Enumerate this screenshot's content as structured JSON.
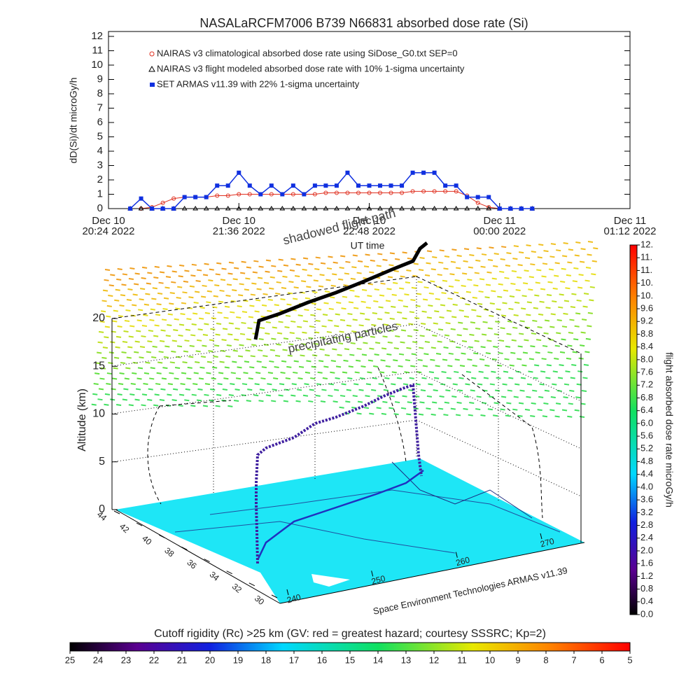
{
  "chart_data": [
    {
      "type": "line",
      "title": "NASALaRCFM7006  B739 N66831 absorbed dose rate (Si)",
      "ylabel": "dD(Si)/dt microGy/h",
      "xlabel": "UT time",
      "x": [
        "2022-12-10T20:36",
        "2022-12-10T20:42",
        "2022-12-10T20:48",
        "2022-12-10T20:54",
        "2022-12-10T21:00",
        "2022-12-10T21:06",
        "2022-12-10T21:12",
        "2022-12-10T21:18",
        "2022-12-10T21:24",
        "2022-12-10T21:30",
        "2022-12-10T21:36",
        "2022-12-10T21:42",
        "2022-12-10T21:48",
        "2022-12-10T21:54",
        "2022-12-10T22:00",
        "2022-12-10T22:06",
        "2022-12-10T22:12",
        "2022-12-10T22:18",
        "2022-12-10T22:24",
        "2022-12-10T22:30",
        "2022-12-10T22:36",
        "2022-12-10T22:42",
        "2022-12-10T22:48",
        "2022-12-10T22:54",
        "2022-12-10T23:00",
        "2022-12-10T23:06",
        "2022-12-10T23:12",
        "2022-12-10T23:18",
        "2022-12-10T23:24",
        "2022-12-10T23:30",
        "2022-12-10T23:36",
        "2022-12-10T23:42",
        "2022-12-10T23:48",
        "2022-12-10T23:54",
        "2022-12-11T00:00",
        "2022-12-11T00:06",
        "2022-12-11T00:12",
        "2022-12-11T00:18"
      ],
      "series": [
        {
          "name": "NAIRAS v3 climatological absorbed dose rate using SiDose_G0.txt SEP=0",
          "color": "#e03020",
          "marker": "circle",
          "values": [
            0,
            0,
            0.1,
            0.4,
            0.7,
            0.8,
            0.8,
            0.8,
            0.9,
            0.9,
            1.0,
            1.0,
            1.0,
            1.0,
            1.0,
            1.0,
            1.0,
            1.0,
            1.1,
            1.1,
            1.1,
            1.1,
            1.1,
            1.1,
            1.1,
            1.1,
            1.2,
            1.2,
            1.2,
            1.2,
            1.2,
            0.9,
            0.4,
            0.1,
            0,
            0,
            0,
            0
          ]
        },
        {
          "name": "NAIRAS v3 flight modeled absorbed dose rate with 10% 1-sigma uncertainty",
          "color": "#000000",
          "marker": "triangle",
          "values": [
            0,
            0,
            0,
            0,
            0,
            0,
            0,
            0,
            0,
            0,
            0,
            0,
            0,
            0,
            0,
            0,
            0,
            0,
            0,
            0,
            0,
            0,
            0,
            0,
            0,
            0,
            0,
            0,
            0,
            0,
            0,
            0,
            0,
            0,
            0,
            0,
            0,
            0
          ]
        },
        {
          "name": "SET ARMAS v11.39 with 22% 1-sigma uncertainty",
          "color": "#1030e0",
          "marker": "square",
          "values": [
            0,
            0.7,
            0,
            0,
            0,
            0.8,
            0.8,
            0.8,
            1.6,
            1.6,
            2.5,
            1.6,
            1.0,
            1.6,
            1.0,
            1.6,
            1.0,
            1.6,
            1.6,
            1.6,
            2.5,
            1.6,
            1.6,
            1.6,
            1.6,
            1.6,
            2.5,
            2.5,
            2.5,
            1.6,
            1.6,
            0.8,
            0.8,
            0.8,
            0,
            0,
            0,
            0
          ]
        }
      ],
      "xlim": [
        "2022-12-10T20:24",
        "2022-12-11T01:12"
      ],
      "xticks": [
        {
          "value": "2022-12-10T20:24",
          "label": "Dec 10\n20:24 2022"
        },
        {
          "value": "2022-12-10T21:36",
          "label": "Dec 10\n21:36 2022"
        },
        {
          "value": "2022-12-10T22:48",
          "label": "Dec 10\n22:48 2022"
        },
        {
          "value": "2022-12-11T00:00",
          "label": "Dec 11\n00:00 2022"
        },
        {
          "value": "2022-12-11T01:12",
          "label": "Dec 11\n01:12 2022"
        }
      ],
      "ylim": [
        0,
        12
      ],
      "yticks": [
        0,
        1,
        2,
        3,
        4,
        5,
        6,
        7,
        8,
        9,
        10,
        11,
        12
      ]
    },
    {
      "type": "3d",
      "zlabel": "Altitude (km)",
      "zticks": [
        0,
        5,
        10,
        15,
        20
      ],
      "yticks": [
        44,
        42,
        40,
        38,
        36,
        34,
        32,
        30
      ],
      "xticks": [
        240,
        250,
        260,
        270
      ],
      "annotations": [
        "shadowed flight path",
        "precipitating particles",
        "Space Environment Technologies ARMAS v11.39"
      ]
    },
    {
      "type": "colorbar",
      "label": "flight absorbed dose rate microGy/h",
      "lim": [
        0,
        11.6
      ],
      "ticks": [
        {
          "value": 0,
          "label": "0.0"
        },
        0.4,
        0.8,
        1.2,
        1.6,
        {
          "value": 2,
          "label": "2.0"
        },
        2.4,
        2.8,
        3.2,
        3.6,
        {
          "value": 4,
          "label": "4.0"
        },
        4.4,
        4.8,
        5.2,
        5.6,
        {
          "value": 6,
          "label": "6.0"
        },
        6.4,
        6.8,
        7.2,
        7.6,
        {
          "value": 8,
          "label": "8.0"
        },
        8.4,
        8.8,
        9.2,
        9.6,
        {
          "value": 10,
          "label": "10."
        },
        {
          "value": 10.4,
          "label": "10."
        },
        {
          "value": 10.8,
          "label": "11."
        },
        {
          "value": 11.2,
          "label": "11."
        },
        {
          "value": 11.6,
          "label": "12."
        }
      ]
    },
    {
      "type": "colorbar",
      "label": "Cutoff rigidity (Rc) >25 km (GV: red = greatest hazard; courtesy SSSRC; Kp=2)",
      "lim": [
        25,
        5
      ],
      "ticks": [
        25,
        24,
        23,
        22,
        21,
        20,
        19,
        18,
        17,
        16,
        15,
        14,
        13,
        12,
        11,
        10,
        9,
        8,
        7,
        6,
        5
      ]
    }
  ]
}
